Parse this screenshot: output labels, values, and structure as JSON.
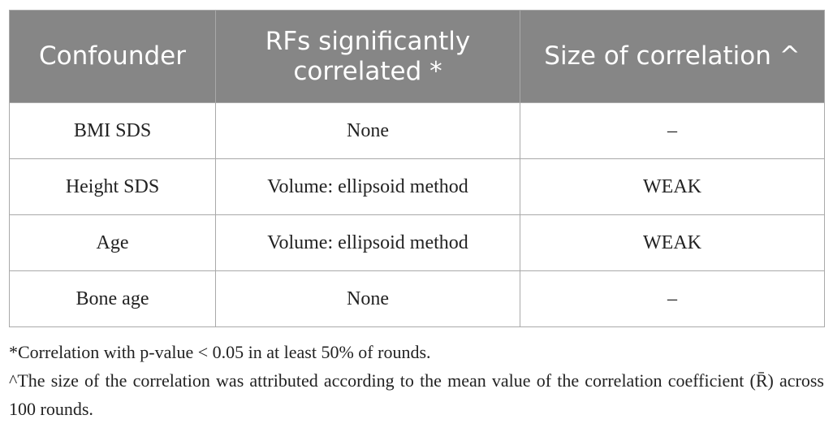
{
  "table": {
    "header": [
      "Confounder",
      "RFs significantly correlated *",
      "Size of correlation ^"
    ],
    "rows": [
      [
        "BMI SDS",
        "None",
        "–"
      ],
      [
        "Height SDS",
        "Volume: ellipsoid method",
        "WEAK"
      ],
      [
        "Age",
        "Volume: ellipsoid method",
        "WEAK"
      ],
      [
        "Bone age",
        "None",
        "–"
      ]
    ]
  },
  "footnotes": [
    "*Correlation with p-value < 0.05 in at least 50% of rounds.",
    "^The size of the correlation was attributed according to the mean value of the correlation coefficient (R̄) across 100 rounds."
  ]
}
